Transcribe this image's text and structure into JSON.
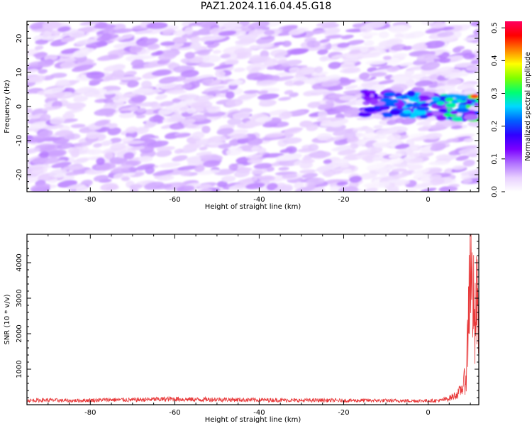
{
  "title": "PAZ1.2024.116.04.45.G18",
  "colors": {
    "snr_line": "#e8393a",
    "axis": "#000000",
    "plot_bg": "#ffffff"
  },
  "chart_data": [
    {
      "type": "heatmap",
      "panel": "spectrogram",
      "xlabel": "Height of straight line (km)",
      "ylabel": "Frequency (Hz)",
      "xlim": [
        -95,
        12
      ],
      "ylim": [
        -25,
        25
      ],
      "xticks": [
        -80,
        -60,
        -40,
        -20,
        0
      ],
      "xtick_labels": [
        "-80",
        "-60",
        "-40",
        "-20",
        "0"
      ],
      "yticks": [
        -20,
        -10,
        0,
        10,
        20
      ],
      "ytick_labels": [
        "-20",
        "-10",
        "0",
        "10",
        "20"
      ],
      "colorbar": {
        "label": "Normalized spectral amplitude",
        "range": [
          0,
          0.52
        ],
        "ticks": [
          0.0,
          0.1,
          0.2,
          0.3,
          0.4,
          0.5
        ],
        "tick_labels": [
          "0.0",
          "0.1",
          "0.2",
          "0.3",
          "0.4",
          "0.5"
        ],
        "colormap": [
          "#ffffff",
          "#e8d0ff",
          "#b070ff",
          "#7b00ff",
          "#3000ff",
          "#0060ff",
          "#00d8ff",
          "#00ff70",
          "#80ff00",
          "#ffff00",
          "#ff8000",
          "#ff0000",
          "#ff0060"
        ]
      },
      "features": [
        {
          "desc": "signal band",
          "x_range": [
            -15,
            12
          ],
          "center_freq": 1,
          "peak_amplitude": 0.45
        }
      ],
      "background_amplitude": 0.06
    },
    {
      "type": "line",
      "panel": "snr",
      "xlabel": "Height of straight line (km)",
      "ylabel": "SNR (10 * v/v)",
      "xlim": [
        -95,
        12
      ],
      "ylim": [
        0,
        4800
      ],
      "xticks": [
        -80,
        -60,
        -40,
        -20,
        0
      ],
      "xtick_labels": [
        "-80",
        "-60",
        "-40",
        "-20",
        "0"
      ],
      "yticks": [
        1000,
        2000,
        3000,
        4000
      ],
      "ytick_labels": [
        "1000",
        "2000",
        "3000",
        "4000"
      ],
      "series": [
        {
          "x": [
            -95,
            -90,
            -85,
            -80,
            -75,
            -70,
            -65,
            -60,
            -55,
            -50,
            -45,
            -40,
            -35,
            -30,
            -25,
            -20,
            -15,
            -10,
            -5,
            0,
            3,
            5,
            7,
            8,
            9,
            9.5,
            10,
            10.3,
            10.6,
            11,
            11.4,
            11.8,
            12
          ],
          "y": [
            120,
            130,
            110,
            125,
            140,
            135,
            150,
            160,
            145,
            150,
            140,
            135,
            130,
            120,
            125,
            115,
            120,
            115,
            110,
            110,
            120,
            180,
            300,
            450,
            800,
            2300,
            4700,
            3000,
            3400,
            1800,
            2800,
            2500,
            3100
          ]
        }
      ]
    }
  ]
}
